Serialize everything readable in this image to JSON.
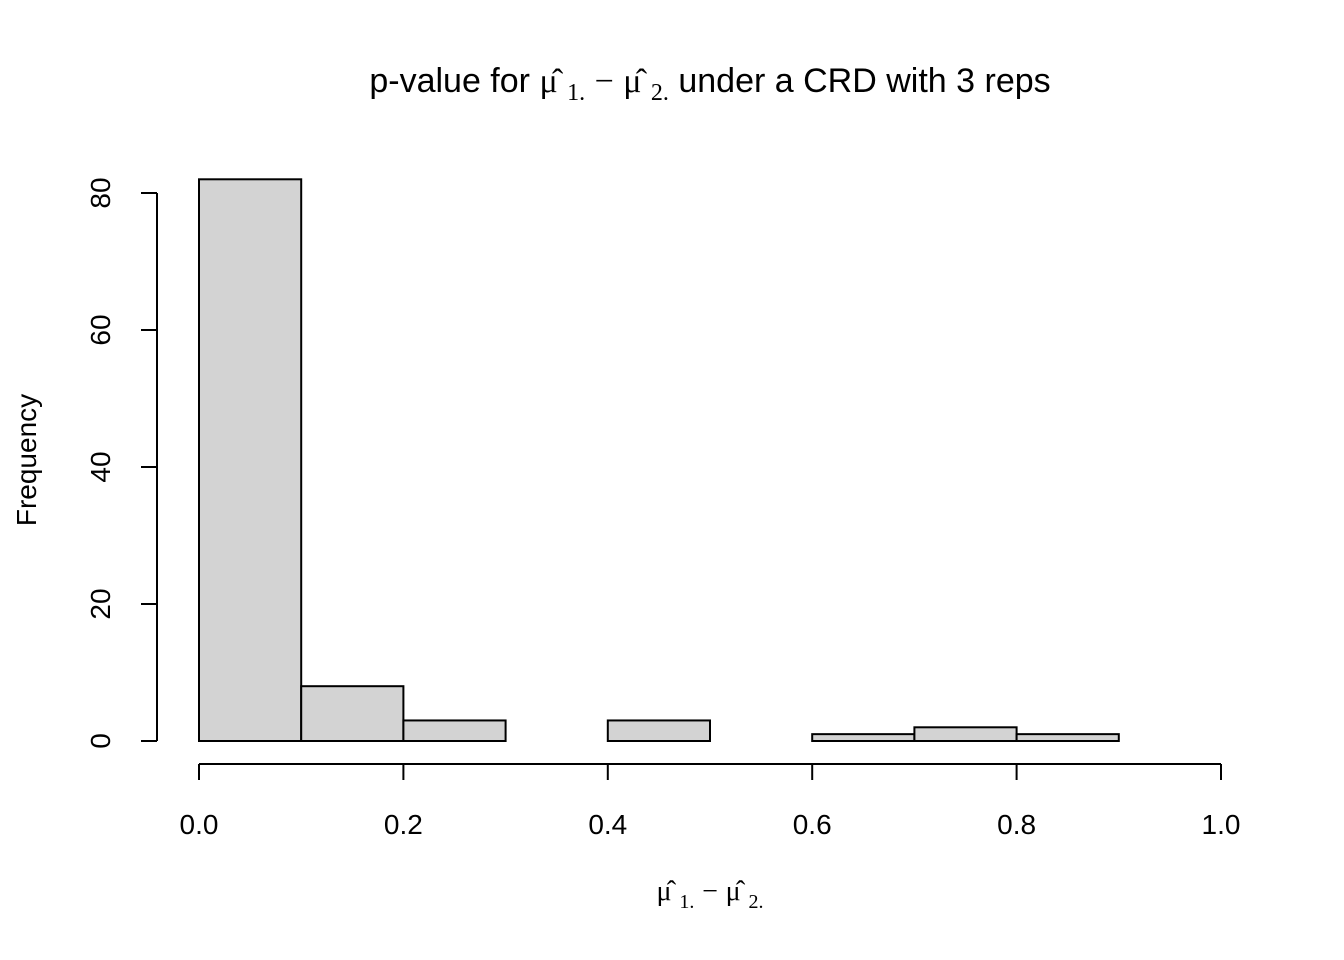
{
  "chart_data": {
    "type": "histogram",
    "title": {
      "prefix": "p-value for ",
      "mu1": "μ̂",
      "sub1": "1.",
      "minus": "−",
      "mu2": "μ̂",
      "sub2": "2.",
      "suffix": " under a CRD with 3 reps"
    },
    "xlabel": {
      "mu1": "μ̂",
      "sub1": "1.",
      "minus": "−",
      "mu2": "μ̂",
      "sub2": "2."
    },
    "ylabel": "Frequency",
    "bins": [
      {
        "start": 0.0,
        "end": 0.1,
        "count": 82
      },
      {
        "start": 0.1,
        "end": 0.2,
        "count": 8
      },
      {
        "start": 0.2,
        "end": 0.3,
        "count": 3
      },
      {
        "start": 0.3,
        "end": 0.4,
        "count": 0
      },
      {
        "start": 0.4,
        "end": 0.5,
        "count": 3
      },
      {
        "start": 0.5,
        "end": 0.6,
        "count": 0
      },
      {
        "start": 0.6,
        "end": 0.7,
        "count": 1
      },
      {
        "start": 0.7,
        "end": 0.8,
        "count": 2
      },
      {
        "start": 0.8,
        "end": 0.9,
        "count": 1
      }
    ],
    "xlim": [
      0,
      1
    ],
    "ylim": [
      0,
      82
    ],
    "xticks": [
      {
        "value": 0.0,
        "label": "0.0"
      },
      {
        "value": 0.2,
        "label": "0.2"
      },
      {
        "value": 0.4,
        "label": "0.4"
      },
      {
        "value": 0.6,
        "label": "0.6"
      },
      {
        "value": 0.8,
        "label": "0.8"
      },
      {
        "value": 1.0,
        "label": "1.0"
      }
    ],
    "yticks": [
      {
        "value": 0,
        "label": "0"
      },
      {
        "value": 20,
        "label": "20"
      },
      {
        "value": 40,
        "label": "40"
      },
      {
        "value": 60,
        "label": "60"
      },
      {
        "value": 80,
        "label": "80"
      }
    ],
    "grid": false,
    "bar_fill": "#d3d3d3",
    "bar_stroke": "#000000"
  }
}
